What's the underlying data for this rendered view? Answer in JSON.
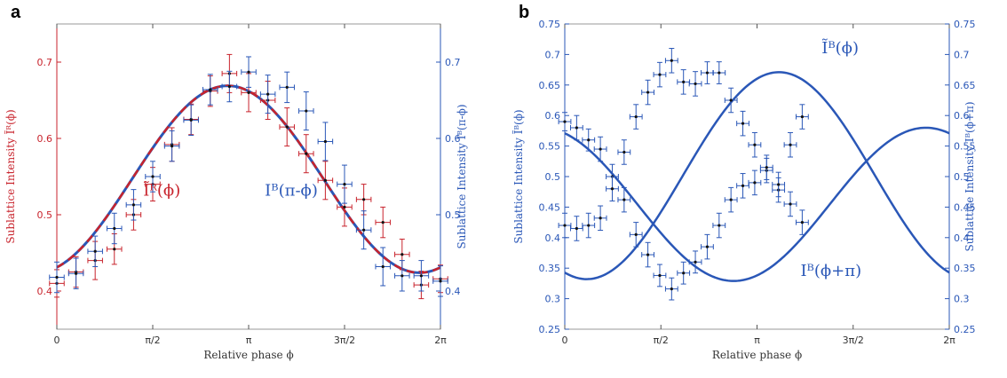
{
  "colors": {
    "red": "#c8232c",
    "blue": "#2a57b7",
    "frame_a": "#c8232c",
    "frame_b": "#2a57b7"
  },
  "chart_data": [
    {
      "type": "scatter",
      "panel_label": "a",
      "xlabel": "Relative phase ϕ",
      "ylabel_left": "Sublattice Intensity Ĩᴿ(ϕ)",
      "ylabel_right": "Sublattice Intensity Iᴮ(π-ϕ)",
      "xlim": [
        0,
        6.2832
      ],
      "ylim_left": [
        0.35,
        0.75
      ],
      "ylim_right": [
        0.35,
        0.75
      ],
      "x_ticks": [
        {
          "v": 0,
          "label": "0"
        },
        {
          "v": 1.5708,
          "label": "π/2"
        },
        {
          "v": 3.1416,
          "label": "π"
        },
        {
          "v": 4.7124,
          "label": "3π/2"
        },
        {
          "v": 6.2832,
          "label": "2π"
        }
      ],
      "y_ticks_left": [
        0.4,
        0.5,
        0.6,
        0.7
      ],
      "y_ticks_right": [
        0.4,
        0.5,
        0.6,
        0.7
      ],
      "annotations": [
        {
          "text": "Ĩᴿ(ϕ)",
          "x": 1.72,
          "y": 0.525,
          "color": "red"
        },
        {
          "text": "Iᴮ(π-ϕ)",
          "x": 3.84,
          "y": 0.525,
          "color": "blue"
        }
      ],
      "curves": [
        {
          "color": "blue",
          "dashed": false,
          "width": 3,
          "fn": "cos",
          "A": 0.1225,
          "C": 0.5465,
          "phi0": 2.8
        },
        {
          "color": "red",
          "dashed": true,
          "width": 2.5,
          "fn": "cos",
          "A": 0.1225,
          "C": 0.5465,
          "phi0": 2.8
        }
      ],
      "series": [
        {
          "color": "red",
          "xerr": 0.12,
          "points": [
            {
              "x": 0.0,
              "y": 0.41,
              "err": 0.018
            },
            {
              "x": 0.314,
              "y": 0.425,
              "err": 0.02
            },
            {
              "x": 0.628,
              "y": 0.44,
              "err": 0.025
            },
            {
              "x": 0.942,
              "y": 0.455,
              "err": 0.02
            },
            {
              "x": 1.257,
              "y": 0.5,
              "err": 0.02
            },
            {
              "x": 1.571,
              "y": 0.54,
              "err": 0.022
            },
            {
              "x": 1.885,
              "y": 0.592,
              "err": 0.022
            },
            {
              "x": 2.199,
              "y": 0.625,
              "err": 0.02
            },
            {
              "x": 2.513,
              "y": 0.662,
              "err": 0.02
            },
            {
              "x": 2.827,
              "y": 0.685,
              "err": 0.025
            },
            {
              "x": 3.142,
              "y": 0.66,
              "err": 0.025
            },
            {
              "x": 3.456,
              "y": 0.65,
              "err": 0.025
            },
            {
              "x": 3.77,
              "y": 0.615,
              "err": 0.025
            },
            {
              "x": 4.084,
              "y": 0.58,
              "err": 0.025
            },
            {
              "x": 4.398,
              "y": 0.545,
              "err": 0.025
            },
            {
              "x": 4.712,
              "y": 0.51,
              "err": 0.025
            },
            {
              "x": 5.027,
              "y": 0.52,
              "err": 0.02
            },
            {
              "x": 5.341,
              "y": 0.49,
              "err": 0.02
            },
            {
              "x": 5.655,
              "y": 0.448,
              "err": 0.02
            },
            {
              "x": 5.969,
              "y": 0.408,
              "err": 0.018
            },
            {
              "x": 6.283,
              "y": 0.416,
              "err": 0.018
            }
          ]
        },
        {
          "color": "blue",
          "xerr": 0.12,
          "points": [
            {
              "x": 0.0,
              "y": 0.418,
              "err": 0.02
            },
            {
              "x": 0.314,
              "y": 0.423,
              "err": 0.02
            },
            {
              "x": 0.628,
              "y": 0.452,
              "err": 0.02
            },
            {
              "x": 0.942,
              "y": 0.482,
              "err": 0.02
            },
            {
              "x": 1.257,
              "y": 0.513,
              "err": 0.02
            },
            {
              "x": 1.571,
              "y": 0.55,
              "err": 0.02
            },
            {
              "x": 1.885,
              "y": 0.59,
              "err": 0.02
            },
            {
              "x": 2.199,
              "y": 0.624,
              "err": 0.02
            },
            {
              "x": 2.513,
              "y": 0.664,
              "err": 0.02
            },
            {
              "x": 2.827,
              "y": 0.668,
              "err": 0.02
            },
            {
              "x": 3.142,
              "y": 0.687,
              "err": 0.02
            },
            {
              "x": 3.456,
              "y": 0.658,
              "err": 0.025
            },
            {
              "x": 3.77,
              "y": 0.667,
              "err": 0.02
            },
            {
              "x": 4.084,
              "y": 0.636,
              "err": 0.025
            },
            {
              "x": 4.398,
              "y": 0.596,
              "err": 0.025
            },
            {
              "x": 4.712,
              "y": 0.54,
              "err": 0.025
            },
            {
              "x": 5.027,
              "y": 0.48,
              "err": 0.025
            },
            {
              "x": 5.341,
              "y": 0.432,
              "err": 0.025
            },
            {
              "x": 5.655,
              "y": 0.42,
              "err": 0.02
            },
            {
              "x": 5.969,
              "y": 0.42,
              "err": 0.02
            },
            {
              "x": 6.283,
              "y": 0.413,
              "err": 0.02
            }
          ]
        }
      ]
    },
    {
      "type": "scatter",
      "panel_label": "b",
      "xlabel": "Relative phase ϕ",
      "ylabel_left": "Sublattice Intensity Ĩᴮ(ϕ)",
      "ylabel_right": "Sublattice Intensity Iᴮ(ϕ+π)",
      "xlim": [
        0,
        6.2832
      ],
      "ylim_left": [
        0.25,
        0.75
      ],
      "ylim_right": [
        0.25,
        0.75
      ],
      "x_ticks": [
        {
          "v": 0,
          "label": "0"
        },
        {
          "v": 1.5708,
          "label": "π/2"
        },
        {
          "v": 3.1416,
          "label": "π"
        },
        {
          "v": 4.7124,
          "label": "3π/2"
        },
        {
          "v": 6.2832,
          "label": "2π"
        }
      ],
      "y_ticks_left": [
        0.25,
        0.3,
        0.35,
        0.4,
        0.45,
        0.5,
        0.55,
        0.6,
        0.65,
        0.7,
        0.75
      ],
      "y_ticks_right": [
        0.25,
        0.3,
        0.35,
        0.4,
        0.45,
        0.5,
        0.55,
        0.6,
        0.65,
        0.7,
        0.75
      ],
      "annotations": [
        {
          "text": "Ĩᴮ(ϕ)",
          "x": 4.5,
          "y": 0.702,
          "color": "blue"
        },
        {
          "text": "Iᴮ(ϕ+π)",
          "x": 4.35,
          "y": 0.337,
          "color": "blue"
        }
      ],
      "curves": [
        {
          "color": "blue",
          "dashed": false,
          "width": 2.5,
          "fn": "cos",
          "A": 0.1695,
          "C": 0.5015,
          "phi0": 3.5
        },
        {
          "color": "blue",
          "dashed": false,
          "width": 2.5,
          "fn": "cos",
          "A": 0.1255,
          "C": 0.4545,
          "phi0": 5.9
        }
      ],
      "series": [
        {
          "color": "blue",
          "xerr": 0.1,
          "points": [
            {
              "x": 0.0,
              "y": 0.59,
              "err": 0.015
            },
            {
              "x": 0.194,
              "y": 0.58,
              "err": 0.02
            },
            {
              "x": 0.388,
              "y": 0.56,
              "err": 0.018
            },
            {
              "x": 0.582,
              "y": 0.545,
              "err": 0.02
            },
            {
              "x": 0.776,
              "y": 0.5,
              "err": 0.02
            },
            {
              "x": 0.97,
              "y": 0.462,
              "err": 0.02
            },
            {
              "x": 1.164,
              "y": 0.405,
              "err": 0.02
            },
            {
              "x": 1.358,
              "y": 0.372,
              "err": 0.02
            },
            {
              "x": 1.552,
              "y": 0.338,
              "err": 0.018
            },
            {
              "x": 1.746,
              "y": 0.316,
              "err": 0.018
            },
            {
              "x": 1.94,
              "y": 0.342,
              "err": 0.018
            },
            {
              "x": 2.134,
              "y": 0.36,
              "err": 0.018
            },
            {
              "x": 2.328,
              "y": 0.385,
              "err": 0.02
            },
            {
              "x": 2.522,
              "y": 0.42,
              "err": 0.02
            },
            {
              "x": 2.716,
              "y": 0.462,
              "err": 0.02
            },
            {
              "x": 2.91,
              "y": 0.485,
              "err": 0.02
            },
            {
              "x": 3.104,
              "y": 0.49,
              "err": 0.02
            },
            {
              "x": 3.298,
              "y": 0.51,
              "err": 0.02
            },
            {
              "x": 3.492,
              "y": 0.478,
              "err": 0.02
            },
            {
              "x": 3.686,
              "y": 0.455,
              "err": 0.02
            },
            {
              "x": 3.88,
              "y": 0.425,
              "err": 0.02
            }
          ]
        },
        {
          "color": "blue",
          "xerr": 0.1,
          "points": [
            {
              "x": 0.0,
              "y": 0.42,
              "err": 0.02
            },
            {
              "x": 0.194,
              "y": 0.415,
              "err": 0.02
            },
            {
              "x": 0.388,
              "y": 0.42,
              "err": 0.02
            },
            {
              "x": 0.582,
              "y": 0.432,
              "err": 0.02
            },
            {
              "x": 0.776,
              "y": 0.48,
              "err": 0.02
            },
            {
              "x": 0.97,
              "y": 0.54,
              "err": 0.02
            },
            {
              "x": 1.164,
              "y": 0.598,
              "err": 0.02
            },
            {
              "x": 1.358,
              "y": 0.638,
              "err": 0.02
            },
            {
              "x": 1.552,
              "y": 0.667,
              "err": 0.02
            },
            {
              "x": 1.746,
              "y": 0.69,
              "err": 0.02
            },
            {
              "x": 1.94,
              "y": 0.655,
              "err": 0.02
            },
            {
              "x": 2.134,
              "y": 0.652,
              "err": 0.02
            },
            {
              "x": 2.328,
              "y": 0.67,
              "err": 0.018
            },
            {
              "x": 2.522,
              "y": 0.67,
              "err": 0.018
            },
            {
              "x": 2.716,
              "y": 0.625,
              "err": 0.02
            },
            {
              "x": 2.91,
              "y": 0.587,
              "err": 0.02
            },
            {
              "x": 3.104,
              "y": 0.552,
              "err": 0.02
            },
            {
              "x": 3.298,
              "y": 0.515,
              "err": 0.02
            },
            {
              "x": 3.492,
              "y": 0.487,
              "err": 0.02
            },
            {
              "x": 3.686,
              "y": 0.552,
              "err": 0.02
            },
            {
              "x": 3.88,
              "y": 0.598,
              "err": 0.02
            }
          ]
        }
      ]
    }
  ]
}
